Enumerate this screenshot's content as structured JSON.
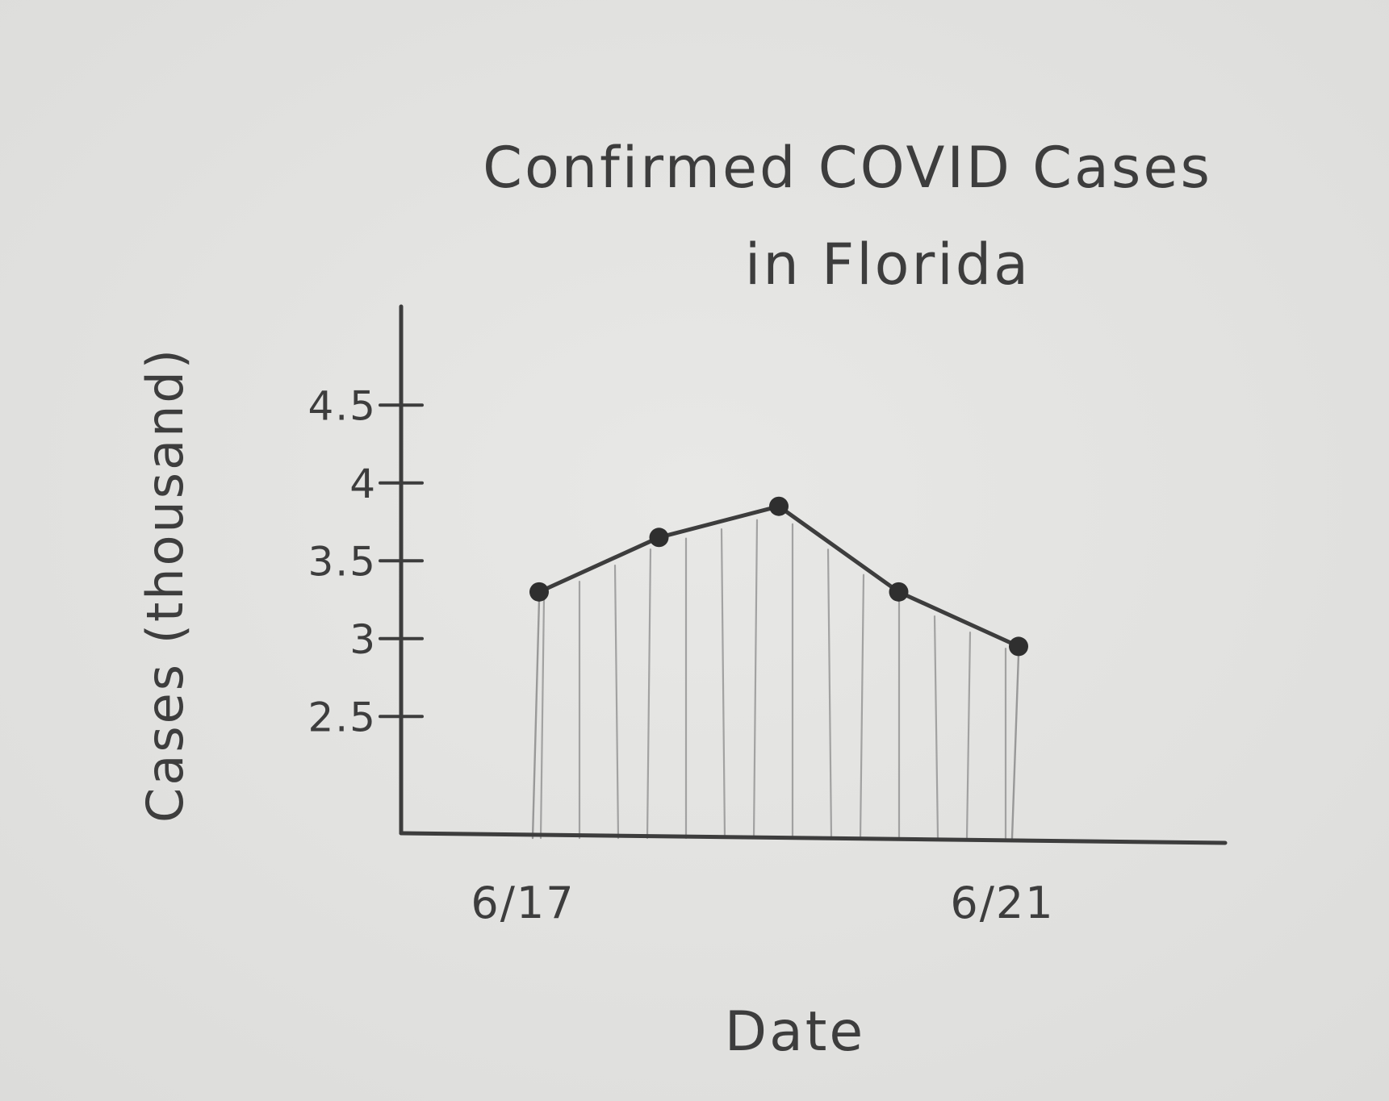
{
  "chart_data": {
    "type": "area",
    "title": "Confirmed COVID Cases in Florida",
    "title_lines": [
      "Confirmed COVID Cases",
      "in Florida"
    ],
    "xlabel": "Date",
    "ylabel": "Cases (thousand)",
    "x": [
      "6/17",
      "6/18",
      "6/19",
      "6/20",
      "6/21"
    ],
    "x_tick_labels": [
      "6/17",
      "6/21"
    ],
    "values": [
      3.3,
      3.65,
      3.85,
      3.3,
      2.95
    ],
    "y_ticks": [
      2.5,
      3,
      3.5,
      4,
      4.5
    ],
    "y_tick_labels": [
      "2.5",
      "3",
      "3.5",
      "4",
      "4.5"
    ],
    "ylim": [
      1.75,
      5.0
    ],
    "grid": false,
    "legend": "none",
    "style": "hand-drawn pencil sketch",
    "colors": {
      "ink": "#3d3d3d",
      "paper": "#e4e4e2",
      "hatch": "#8c8c8c"
    }
  }
}
